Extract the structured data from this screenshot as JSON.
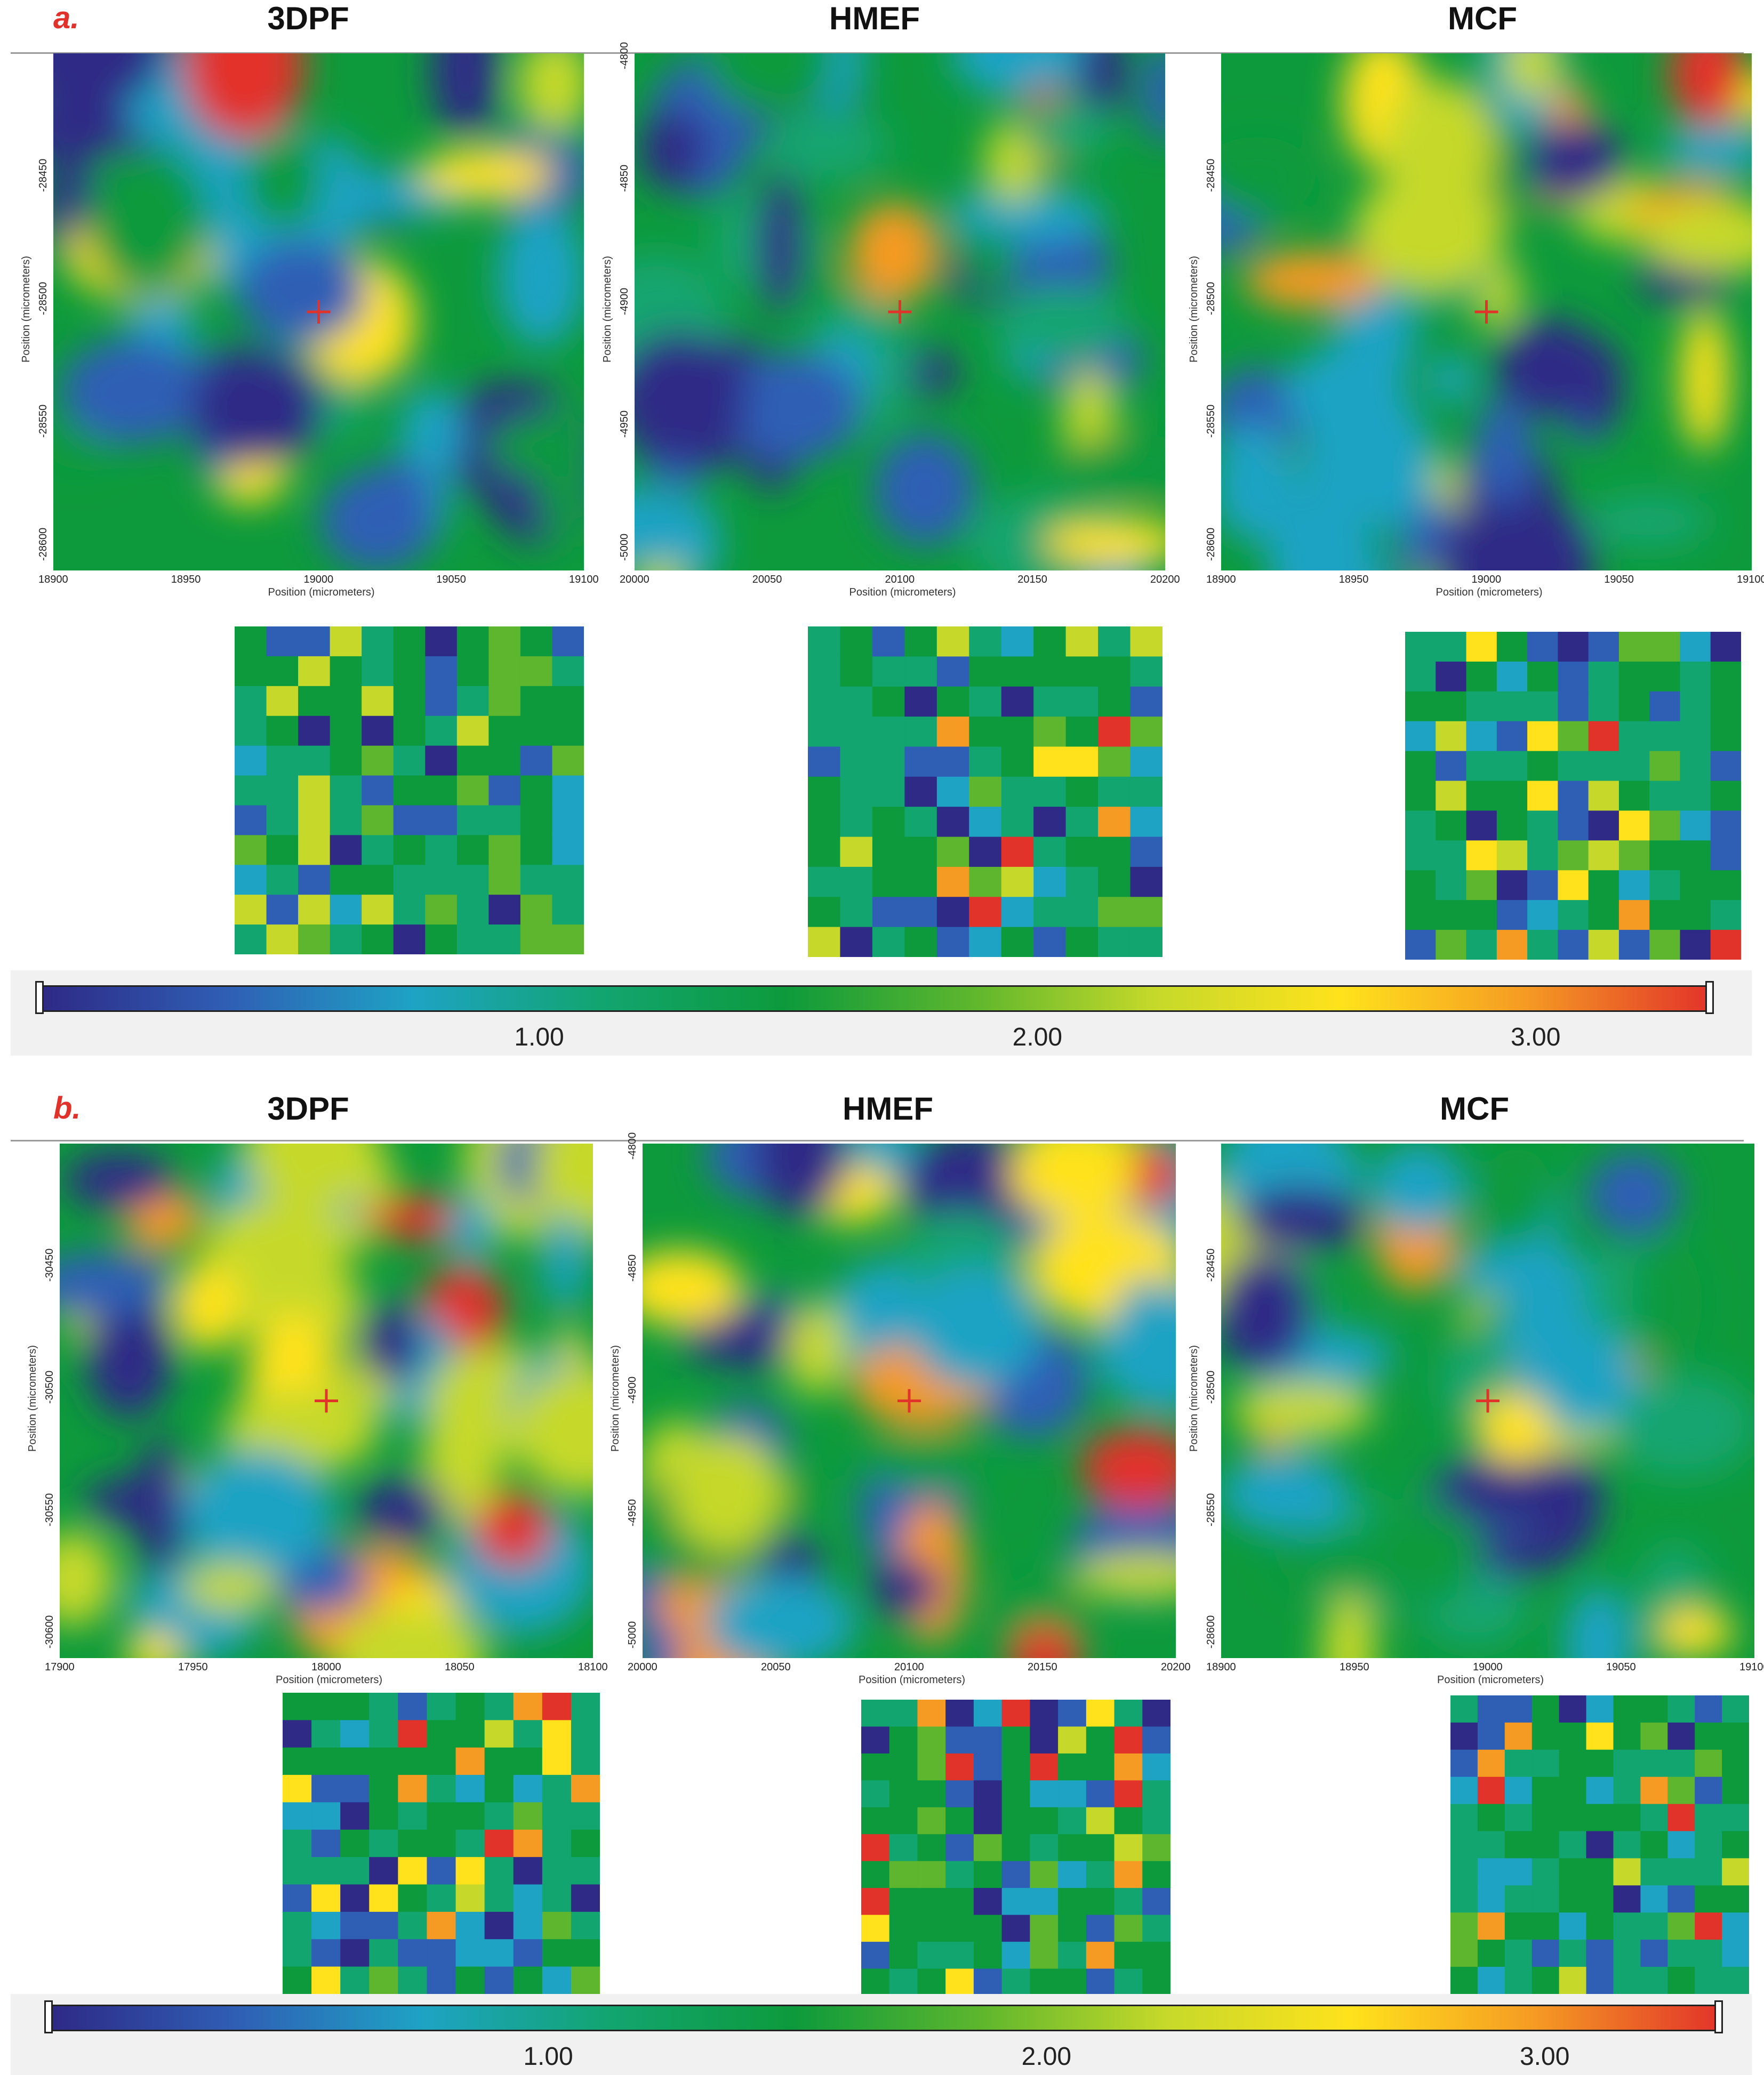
{
  "sections": [
    {
      "label": "a.",
      "panels": [
        {
          "title": "3DPF",
          "seed": 11,
          "hot": 0.1,
          "cold": 0.35,
          "xticks": [
            "18900",
            "18950",
            "19000",
            "19050",
            "19100"
          ],
          "yticks": [
            "-28450",
            "-28500",
            "-28550",
            "-28600"
          ],
          "xlabel": "Position (micrometers)",
          "ylabel": "Position (micrometers)",
          "marker": {
            "x": 19000,
            "y": -28500
          }
        },
        {
          "title": "HMEF",
          "seed": 23,
          "hot": 0.22,
          "cold": 0.3,
          "xticks": [
            "20000",
            "20050",
            "20100",
            "20150",
            "20200"
          ],
          "yticks": [
            "-4800",
            "-4850",
            "-4900",
            "-4950",
            "-5000"
          ],
          "xlabel": "Position (micrometers)",
          "ylabel": "Position (micrometers)",
          "marker": {
            "x": 20100,
            "y": -4900
          }
        },
        {
          "title": "MCF",
          "seed": 37,
          "hot": 0.25,
          "cold": 0.38,
          "xticks": [
            "18900",
            "18950",
            "19000",
            "19050",
            "19100"
          ],
          "yticks": [
            "-28450",
            "-28500",
            "-28550",
            "-28600"
          ],
          "xlabel": "Position (micrometers)",
          "ylabel": "Position (micrometers)",
          "marker": {
            "x": 19000,
            "y": -28500
          }
        }
      ],
      "colorbar": {
        "ticks": [
          "1.00",
          "2.00",
          "3.00"
        ],
        "values": [
          1,
          2,
          3
        ],
        "min": 0,
        "max": 3.35
      }
    },
    {
      "label": "b.",
      "panels": [
        {
          "title": "3DPF",
          "seed": 51,
          "hot": 0.55,
          "cold": 0.22,
          "xticks": [
            "17900",
            "17950",
            "18000",
            "18050",
            "18100"
          ],
          "yticks": [
            "-30450",
            "-30500",
            "-30550",
            "-30600"
          ],
          "xlabel": "Position (micrometers)",
          "ylabel": "Position (micrometers)",
          "marker": {
            "x": 18000,
            "y": -30500
          }
        },
        {
          "title": "HMEF",
          "seed": 67,
          "hot": 0.3,
          "cold": 0.22,
          "xticks": [
            "20000",
            "20050",
            "20100",
            "20150",
            "20200"
          ],
          "yticks": [
            "-4800",
            "-4850",
            "-4900",
            "-4950",
            "-5000"
          ],
          "xlabel": "Position (micrometers)",
          "ylabel": "Position (micrometers)",
          "marker": {
            "x": 20100,
            "y": -4900
          }
        },
        {
          "title": "MCF",
          "seed": 83,
          "hot": 0.28,
          "cold": 0.25,
          "xticks": [
            "18900",
            "18950",
            "19000",
            "19050",
            "19100"
          ],
          "yticks": [
            "-28450",
            "-28500",
            "-28550",
            "-28600"
          ],
          "xlabel": "Position (micrometers)",
          "ylabel": "Position (micrometers)",
          "marker": {
            "x": 19000,
            "y": -28500
          }
        }
      ],
      "colorbar": {
        "ticks": [
          "1.00",
          "2.00",
          "3.00"
        ],
        "values": [
          1,
          2,
          3
        ],
        "min": 0,
        "max": 3.35
      }
    }
  ],
  "colormap": [
    "#2e2a86",
    "#2f5fb5",
    "#1ea3c4",
    "#12a570",
    "#0d9a3c",
    "#5db62d",
    "#c6d92a",
    "#ffe21c",
    "#f59a23",
    "#e2332a"
  ]
}
